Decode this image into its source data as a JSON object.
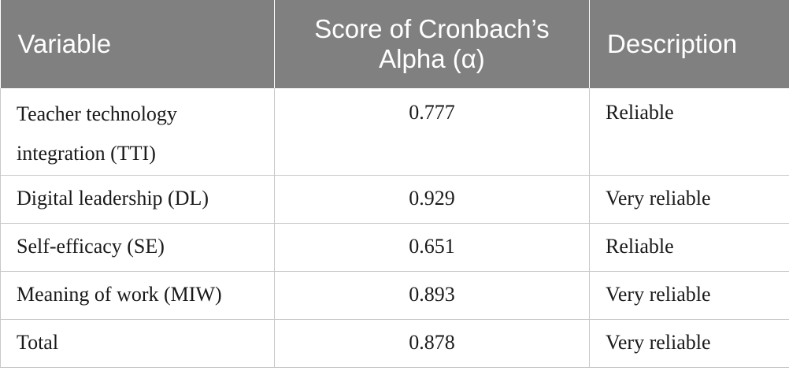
{
  "table": {
    "headers": {
      "variable": "Variable",
      "score": "Score of Cronbach’s Alpha (α)",
      "description": "Description"
    },
    "rows": [
      {
        "variable": "Teacher technology integration (TTI)",
        "score": "0.777",
        "description": "Reliable"
      },
      {
        "variable": "Digital leadership (DL)",
        "score": "0.929",
        "description": "Very reliable"
      },
      {
        "variable": "Self-efficacy (SE)",
        "score": "0.651",
        "description": "Reliable"
      },
      {
        "variable": "Meaning of work (MIW)",
        "score": "0.893",
        "description": "Very reliable"
      },
      {
        "variable": "Total",
        "score": "0.878",
        "description": "Very reliable"
      }
    ]
  }
}
